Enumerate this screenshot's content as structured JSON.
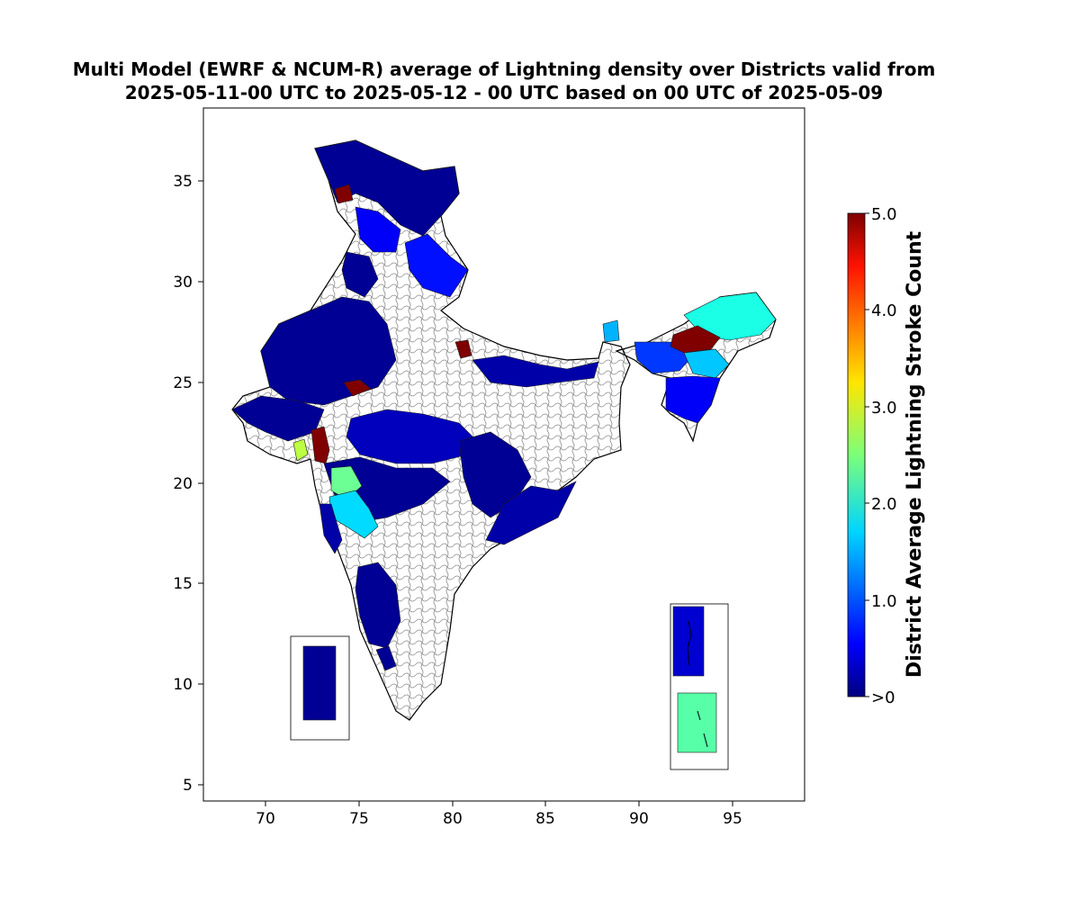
{
  "title": {
    "line1": "Multi Model (EWRF & NCUM-R) average of Lightning density over Districts valid from",
    "line2": "2025-05-11-00 UTC to 2025-05-12 - 00 UTC based on 00 UTC of 2025-05-09"
  },
  "map": {
    "x_axis": {
      "ticks": [
        "70",
        "75",
        "80",
        "85",
        "90",
        "95"
      ],
      "range": [
        66.7,
        98.9
      ]
    },
    "y_axis": {
      "ticks": [
        "5",
        "10",
        "15",
        "20",
        "25",
        "30",
        "35"
      ],
      "range": [
        4.2,
        38.6
      ]
    },
    "base_color": "#ffffff",
    "boundary_color": "#000000",
    "district_line_color": "#808080"
  },
  "colorbar": {
    "label": "District Average Lightning Stroke Count",
    "colormap": "jet",
    "ticks": [
      ">0",
      "1.0",
      "2.0",
      "3.0",
      "4.0",
      "5.0"
    ],
    "range": [
      0,
      5
    ]
  },
  "regions": [
    {
      "name": "jammu-kashmir-ladakh",
      "value": 0.1
    },
    {
      "name": "north-kashmir-spot",
      "value": 5.0
    },
    {
      "name": "himachal",
      "value": 0.6
    },
    {
      "name": "uttarakhand",
      "value": 0.7
    },
    {
      "name": "punjab-haryana",
      "value": 0.1
    },
    {
      "name": "rajasthan",
      "value": 0.1
    },
    {
      "name": "gujarat-north",
      "value": 0.1
    },
    {
      "name": "saurashtra-spot",
      "value": 2.8
    },
    {
      "name": "south-gujarat",
      "value": 5.0
    },
    {
      "name": "madhya-pradesh",
      "value": 0.3
    },
    {
      "name": "maharashtra-north",
      "value": 0.1
    },
    {
      "name": "maharashtra-central",
      "value": 2.4
    },
    {
      "name": "marathwada",
      "value": 1.7
    },
    {
      "name": "konkan",
      "value": 0.2
    },
    {
      "name": "chhattisgarh",
      "value": 0.1
    },
    {
      "name": "odisha",
      "value": 0.2
    },
    {
      "name": "bihar-east",
      "value": 0.2
    },
    {
      "name": "karnataka",
      "value": 0.1
    },
    {
      "name": "kerala",
      "value": 0.1
    },
    {
      "name": "up-spot",
      "value": 5.0
    },
    {
      "name": "rajasthan-spot",
      "value": 5.0
    },
    {
      "name": "sikkim",
      "value": 1.5
    },
    {
      "name": "assam-west",
      "value": 0.9
    },
    {
      "name": "arunachal",
      "value": 2.0
    },
    {
      "name": "assam-central",
      "value": 5.0
    },
    {
      "name": "nagaland",
      "value": 1.6
    },
    {
      "name": "manipur-mizoram",
      "value": 0.6
    },
    {
      "name": "lakshadweep",
      "value": 0.1
    },
    {
      "name": "andaman",
      "value": 0.4
    },
    {
      "name": "nicobar",
      "value": 2.3
    }
  ]
}
